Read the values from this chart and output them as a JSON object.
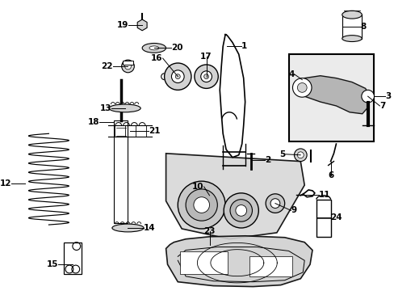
{
  "bg_color": "#ffffff",
  "line_color": "#000000",
  "text_color": "#000000",
  "figsize": [
    4.89,
    3.6
  ],
  "dpi": 100,
  "label_fontsize": 7.5
}
